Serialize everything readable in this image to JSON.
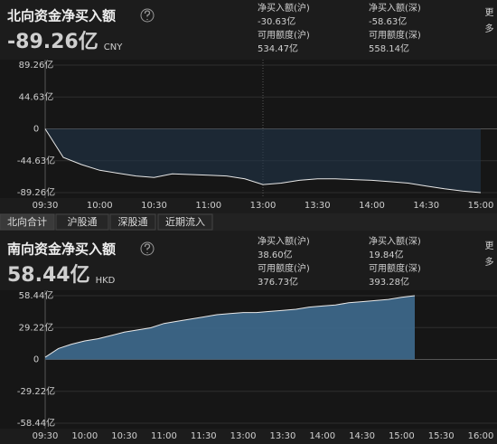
{
  "tabs": [
    "北向合计",
    "沪股通",
    "深股通",
    "近期流入"
  ],
  "chart_data": [
    {
      "type": "line",
      "title": "北向资金净买入额",
      "headline": "-89.26亿",
      "currency": "CNY",
      "headline_color": "#2ec52e",
      "more": "更多",
      "stats": [
        {
          "label": "净买入额(沪)",
          "value": "-30.63亿",
          "color": "#2ec52e"
        },
        {
          "label": "净买入额(深)",
          "value": "-58.63亿",
          "color": "#2ec52e"
        },
        {
          "label": "可用额度(沪)",
          "value": "534.47亿",
          "color": "#dddddd"
        },
        {
          "label": "可用额度(深)",
          "value": "558.14亿",
          "color": "#dddddd"
        }
      ],
      "x": [
        "09:30",
        "09:40",
        "09:50",
        "10:00",
        "10:10",
        "10:20",
        "10:30",
        "10:40",
        "10:50",
        "11:00",
        "11:10",
        "11:20",
        "13:00",
        "13:10",
        "13:20",
        "13:30",
        "13:40",
        "13:50",
        "14:00",
        "14:10",
        "14:20",
        "14:30",
        "14:40",
        "14:50",
        "15:00"
      ],
      "series": [
        {
          "color": "#e8e8e8",
          "fill": "#22364a",
          "values": [
            0,
            -40,
            -50,
            -58,
            -62,
            -66,
            -68,
            -63,
            -64,
            -65,
            -66,
            -70,
            -78,
            -76,
            -72,
            -70,
            -70,
            -71,
            -72,
            -74,
            -76,
            -80,
            -84,
            -87,
            -89.26
          ]
        }
      ],
      "xticks": [
        "09:30",
        "10:00",
        "10:30",
        "11:00",
        "13:00",
        "13:30",
        "14:00",
        "14:30",
        "15:00"
      ],
      "ylim": [
        -89.26,
        89.26
      ],
      "yticks": [
        {
          "value": 89.26,
          "label": "89.26亿"
        },
        {
          "value": 44.63,
          "label": "44.63亿"
        },
        0,
        {
          "value": -44.63,
          "label": "-44.63亿"
        },
        {
          "value": -89.26,
          "label": "-89.26亿"
        }
      ],
      "grid": true,
      "divider": "13:00"
    },
    {
      "type": "area",
      "title": "南向资金净买入额",
      "headline": "58.44亿",
      "currency": "HKD",
      "headline_color": "#f03030",
      "more": "更多",
      "stats": [
        {
          "label": "净买入额(沪)",
          "value": "38.60亿",
          "color": "#f03030"
        },
        {
          "label": "净买入额(深)",
          "value": "19.84亿",
          "color": "#f03030"
        },
        {
          "label": "可用额度(沪)",
          "value": "376.73亿",
          "color": "#dddddd"
        },
        {
          "label": "可用额度(深)",
          "value": "393.28亿",
          "color": "#dddddd"
        }
      ],
      "x": [
        "09:30",
        "09:40",
        "09:50",
        "10:00",
        "10:10",
        "10:20",
        "10:30",
        "10:40",
        "10:50",
        "11:00",
        "11:10",
        "11:20",
        "11:30",
        "11:40",
        "11:50",
        "13:00",
        "13:10",
        "13:20",
        "13:30",
        "13:40",
        "13:50",
        "14:00",
        "14:10",
        "14:20",
        "14:30",
        "14:40",
        "14:50",
        "15:00",
        "15:10",
        "15:20",
        "15:30",
        "15:40",
        "15:50",
        "16:00"
      ],
      "series": [
        {
          "color": "#e8e8e8",
          "fill": "#3e6a8e",
          "values": [
            2,
            10,
            14,
            17,
            19,
            22,
            25,
            27,
            29,
            33,
            35,
            37,
            39,
            41,
            42,
            43,
            43,
            44,
            45,
            46,
            48,
            49,
            50,
            52,
            53,
            54,
            55,
            57,
            58.44,
            null,
            null,
            null,
            null,
            null
          ]
        }
      ],
      "xticks": [
        "09:30",
        "10:00",
        "10:30",
        "11:00",
        "11:30",
        "13:00",
        "13:30",
        "14:00",
        "14:30",
        "15:00",
        "15:30",
        "16:00"
      ],
      "ylim": [
        -58.44,
        58.44
      ],
      "yticks": [
        {
          "value": 58.44,
          "label": "58.44亿"
        },
        {
          "value": 29.22,
          "label": "29.22亿"
        },
        0,
        {
          "value": -29.22,
          "label": "-29.22亿"
        },
        {
          "value": -58.44,
          "label": "-58.44亿"
        }
      ],
      "grid": true
    }
  ]
}
